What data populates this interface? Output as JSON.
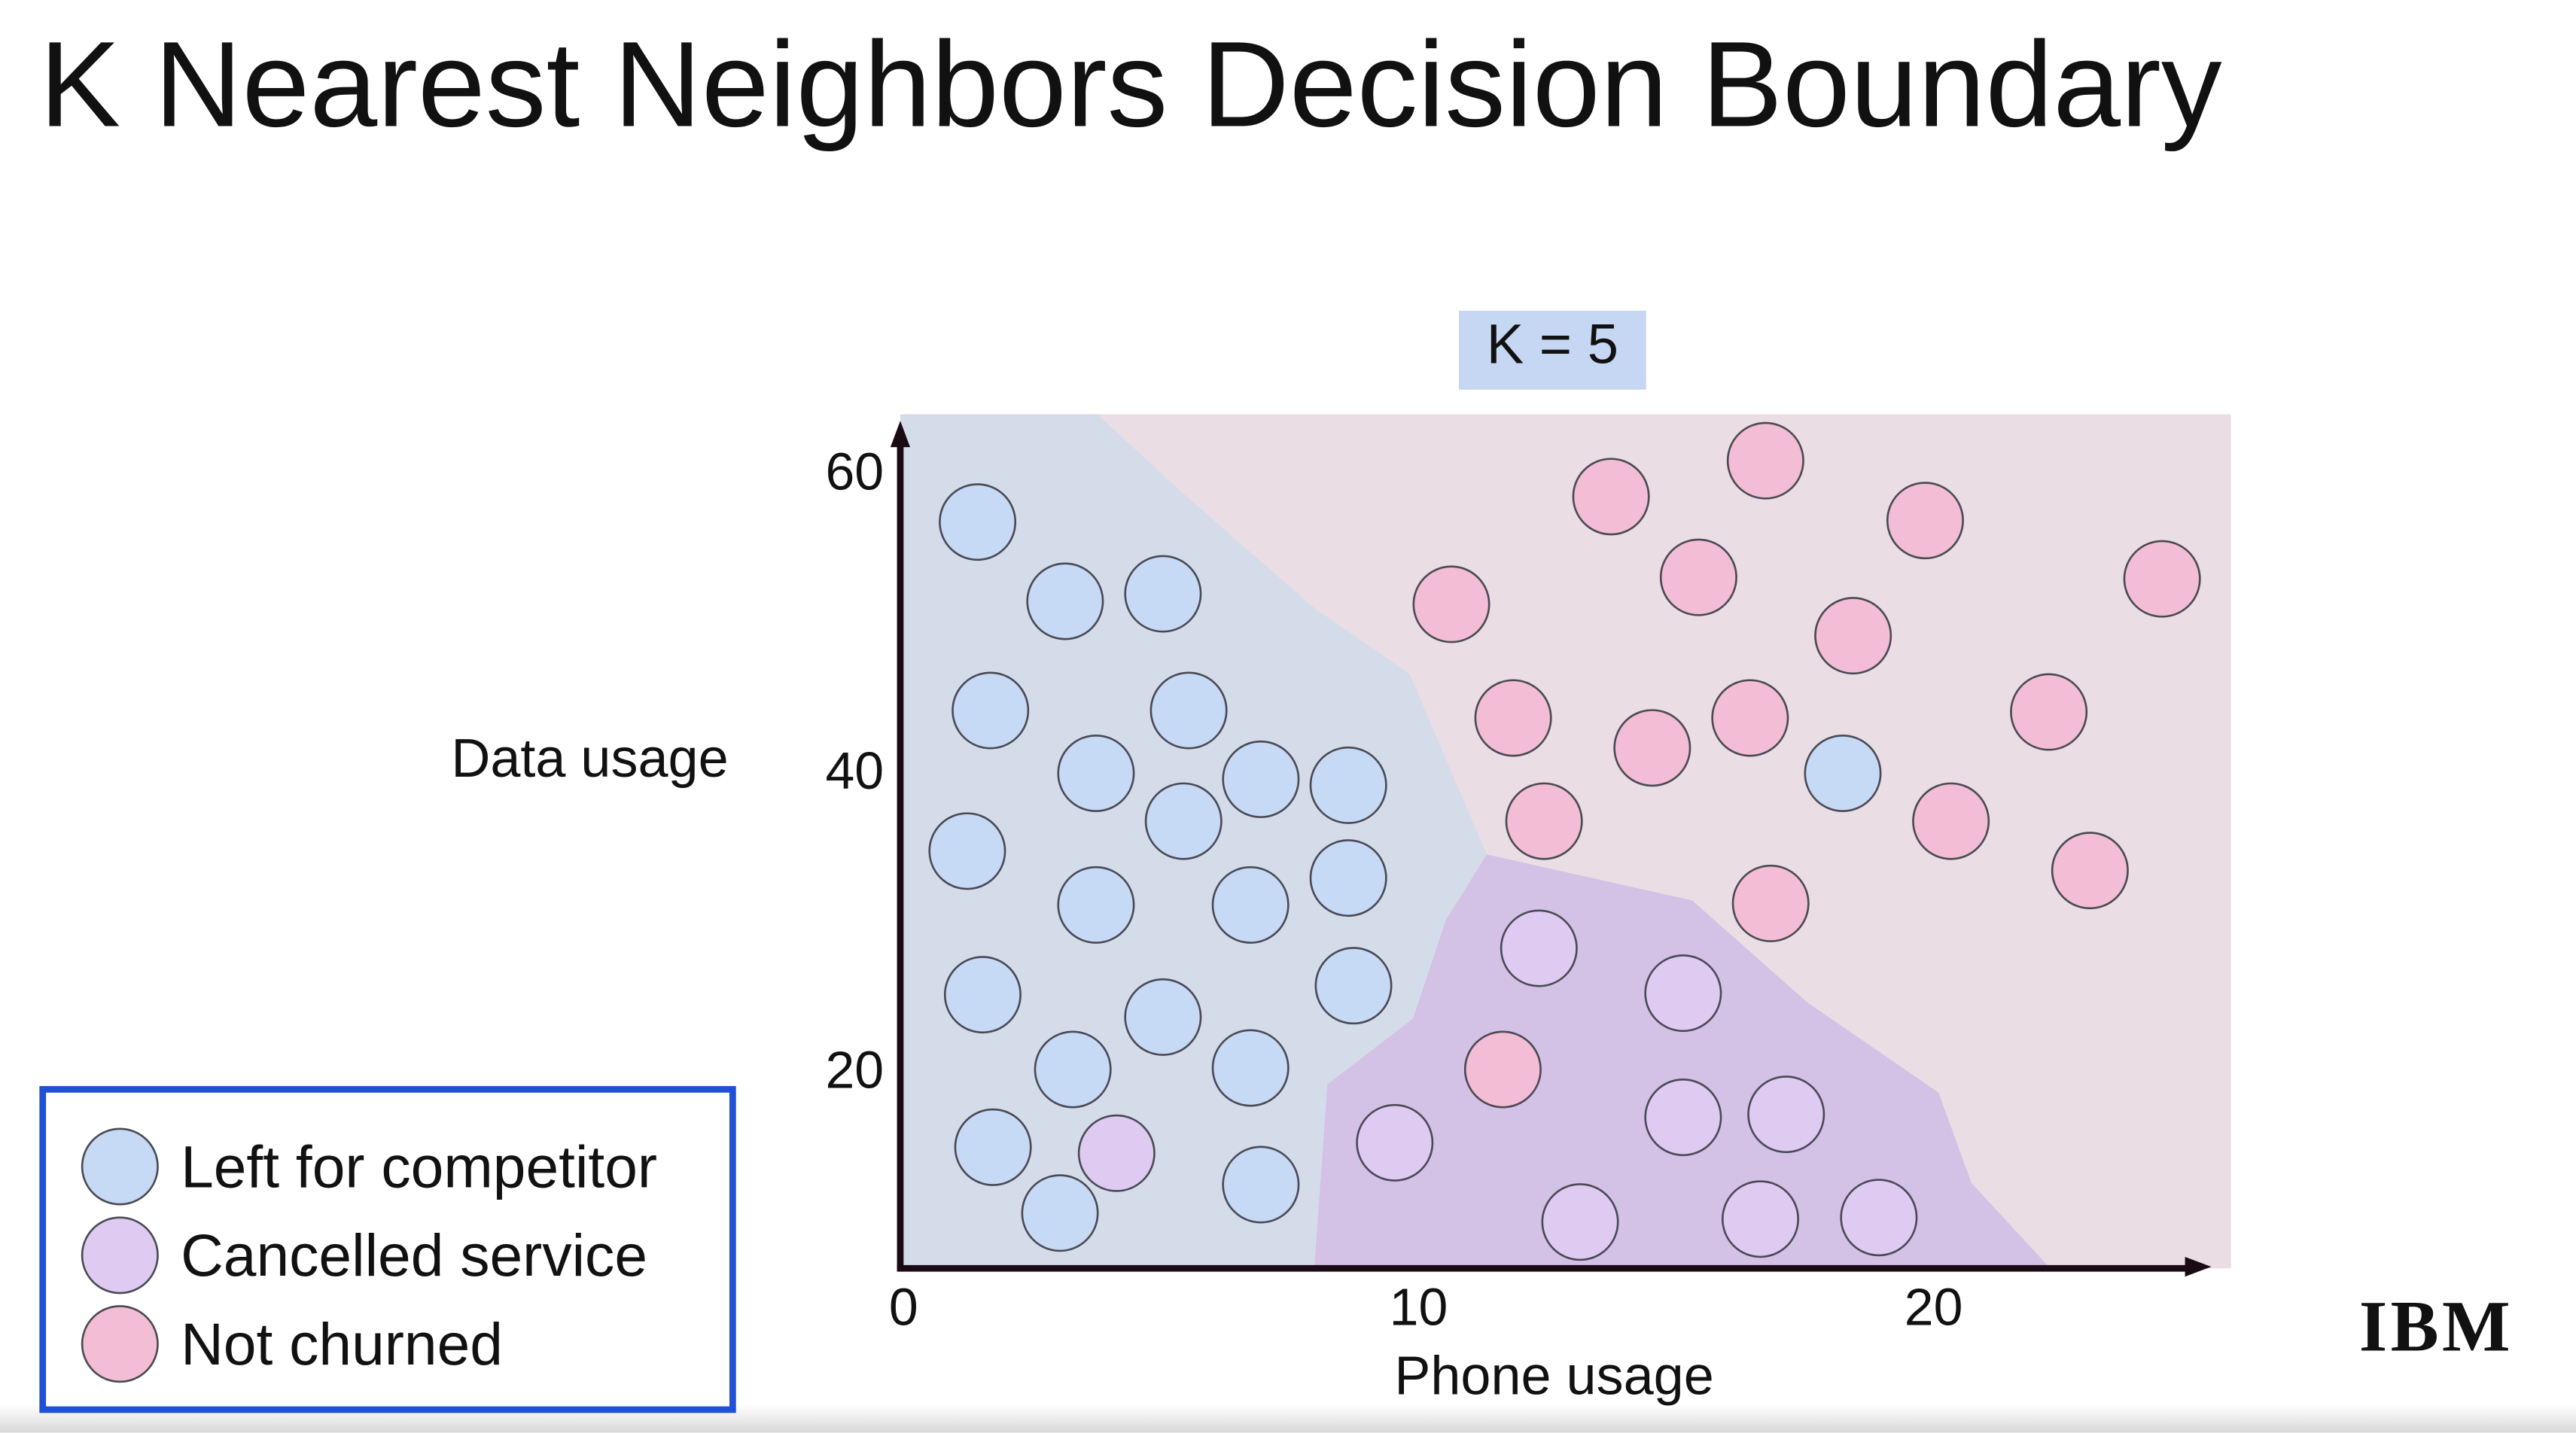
{
  "chart_data": {
    "type": "scatter",
    "title": "K Nearest Neighbors Decision Boundary",
    "annotation": "K = 5",
    "x_label": "Phone usage",
    "y_label": "Data usage",
    "logo": "IBM",
    "xlim": [
      0,
      25.5
    ],
    "ylim": [
      7,
      63.5
    ],
    "xticks": [
      0,
      10,
      20
    ],
    "yticks": [
      20,
      40,
      60
    ],
    "grid": false,
    "legend": "lower left",
    "series": [
      {
        "name": "Left for competitor",
        "color": "#c6d9f5",
        "x": [
          1.5,
          3.2,
          5.1,
          1.75,
          5.6,
          3.8,
          7.0,
          8.7,
          5.5,
          1.3,
          3.8,
          6.8,
          8.7,
          1.6,
          5.1,
          8.8,
          3.35,
          6.8,
          1.8,
          7.0,
          3.1,
          18.3
        ],
        "values": [
          56.9,
          51.6,
          52.1,
          44.3,
          44.3,
          40.1,
          39.7,
          39.3,
          36.9,
          34.9,
          31.3,
          31.3,
          33.1,
          25.3,
          23.8,
          25.9,
          20.3,
          20.4,
          15.1,
          12.6,
          10.7,
          40.1
        ]
      },
      {
        "name": "Cancelled service",
        "color": "#dfcbf2",
        "x": [
          4.2,
          12.4,
          15.2,
          9.6,
          15.2,
          17.2,
          13.2,
          16.7,
          19.0
        ],
        "values": [
          14.7,
          28.4,
          25.4,
          15.4,
          17.1,
          17.3,
          10.1,
          10.3,
          10.4
        ]
      },
      {
        "name": "Not churned",
        "color": "#f2bdd5",
        "x": [
          16.8,
          13.8,
          19.9,
          15.5,
          24.5,
          10.7,
          18.5,
          11.9,
          14.6,
          16.5,
          22.3,
          12.5,
          20.4,
          23.1,
          16.9,
          11.7
        ],
        "values": [
          61.0,
          58.6,
          57.0,
          53.2,
          53.1,
          51.4,
          49.3,
          43.8,
          41.8,
          43.8,
          44.2,
          36.9,
          36.9,
          33.6,
          31.4,
          20.3
        ]
      }
    ]
  }
}
